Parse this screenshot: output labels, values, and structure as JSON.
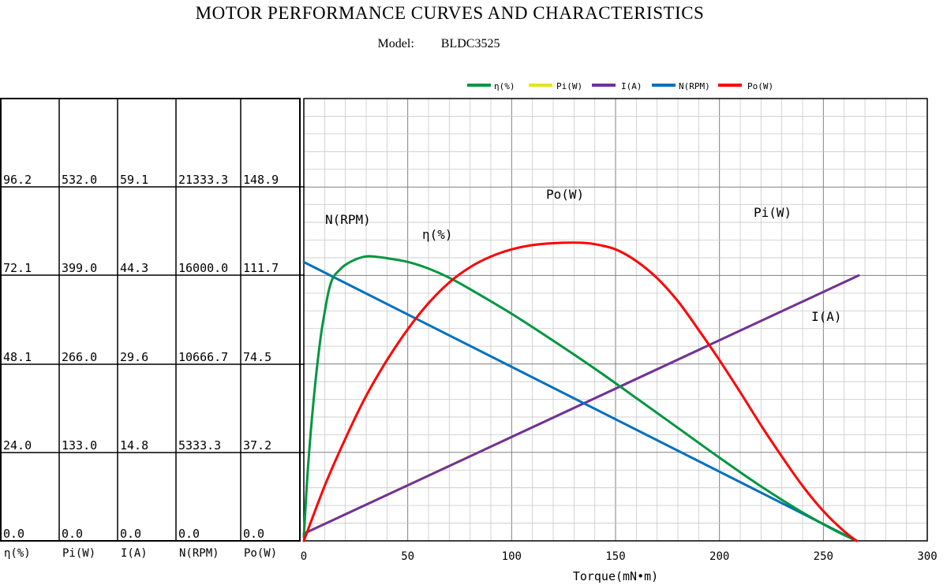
{
  "title": "MOTOR PERFORMANCE CURVES AND CHARACTERISTICS",
  "model": {
    "label": "Model:",
    "value": "BLDC3525"
  },
  "colors": {
    "eta": "#009640",
    "pi": "#e6e31a",
    "current": "#7030a0",
    "speed": "#0070c0",
    "po": "#ff0000",
    "grid": "#c8c8c8",
    "grid_major": "#808080"
  },
  "table": {
    "columns": [
      "η(%)",
      "Pi(W)",
      "I(A)",
      "N(RPM)",
      "Po(W)"
    ],
    "rows": [
      [
        "96.2",
        "532.0",
        "59.1",
        "21333.3",
        "148.9"
      ],
      [
        "72.1",
        "399.0",
        "44.3",
        "16000.0",
        "111.7"
      ],
      [
        "48.1",
        "266.0",
        "29.6",
        "10666.7",
        "74.5"
      ],
      [
        "24.0",
        "133.0",
        "14.8",
        "5333.3",
        "37.2"
      ],
      [
        "0.0",
        "0.0",
        "0.0",
        "0.0",
        "0.0"
      ]
    ]
  },
  "chart_data": {
    "type": "line",
    "title": "MOTOR PERFORMANCE CURVES AND CHARACTERISTICS",
    "xlabel": "Torque(mN•m)",
    "xlim": [
      0,
      300
    ],
    "x_ticks": [
      "0",
      "50",
      "100",
      "150",
      "200",
      "250",
      "300"
    ],
    "grid": true,
    "legend_position": "top",
    "series": [
      {
        "name": "η(%)",
        "label": "η(%)",
        "color": "#009640",
        "ylim": [
          0,
          96.2
        ],
        "points": [
          [
            0,
            1
          ],
          [
            2,
            20
          ],
          [
            5,
            40
          ],
          [
            8,
            55
          ],
          [
            10,
            62
          ],
          [
            12,
            68
          ],
          [
            14,
            71.5
          ],
          [
            17,
            73.5
          ],
          [
            20,
            75
          ],
          [
            25,
            76.5
          ],
          [
            30,
            77.3
          ],
          [
            35,
            77.2
          ],
          [
            40,
            76.8
          ],
          [
            50,
            75.8
          ],
          [
            60,
            74
          ],
          [
            70,
            71.5
          ],
          [
            80,
            68.4
          ],
          [
            100,
            61.7
          ],
          [
            120,
            54.4
          ],
          [
            140,
            46.8
          ],
          [
            160,
            38.8
          ],
          [
            180,
            30.7
          ],
          [
            200,
            22.6
          ],
          [
            220,
            14.8
          ],
          [
            240,
            7.7
          ],
          [
            255,
            3
          ],
          [
            266,
            0
          ]
        ]
      },
      {
        "name": "Pi(W)",
        "label": "Pi(W)",
        "color": "#e6e31a",
        "ylim": [
          0,
          532.0
        ],
        "points": [
          [
            0,
            11
          ],
          [
            267,
            399
          ]
        ]
      },
      {
        "name": "I(A)",
        "label": "I(A)",
        "color": "#7030a0",
        "ylim": [
          0,
          59.1
        ],
        "points": [
          [
            0,
            1.2
          ],
          [
            267,
            44.3
          ]
        ]
      },
      {
        "name": "N(RPM)",
        "label": "N(RPM)",
        "color": "#0070c0",
        "ylim": [
          0,
          21333.3
        ],
        "points": [
          [
            0,
            16800
          ],
          [
            266,
            0
          ]
        ]
      },
      {
        "name": "Po(W)",
        "label": "Po(W)",
        "color": "#ff0000",
        "ylim": [
          0,
          148.9
        ],
        "points": [
          [
            0,
            0
          ],
          [
            10,
            23
          ],
          [
            20,
            43
          ],
          [
            30,
            61
          ],
          [
            40,
            76
          ],
          [
            50,
            89
          ],
          [
            60,
            100
          ],
          [
            70,
            108.7
          ],
          [
            80,
            115.1
          ],
          [
            90,
            119.6
          ],
          [
            100,
            122.6
          ],
          [
            110,
            124.4
          ],
          [
            120,
            125.2
          ],
          [
            133,
            125.4
          ],
          [
            140,
            124.8
          ],
          [
            150,
            122.6
          ],
          [
            160,
            117.7
          ],
          [
            170,
            110.5
          ],
          [
            180,
            100.8
          ],
          [
            190,
            88.7
          ],
          [
            200,
            76
          ],
          [
            210,
            62.5
          ],
          [
            220,
            48.6
          ],
          [
            230,
            35.5
          ],
          [
            240,
            23.1
          ],
          [
            250,
            12.5
          ],
          [
            260,
            4
          ],
          [
            266,
            0
          ]
        ]
      }
    ]
  }
}
